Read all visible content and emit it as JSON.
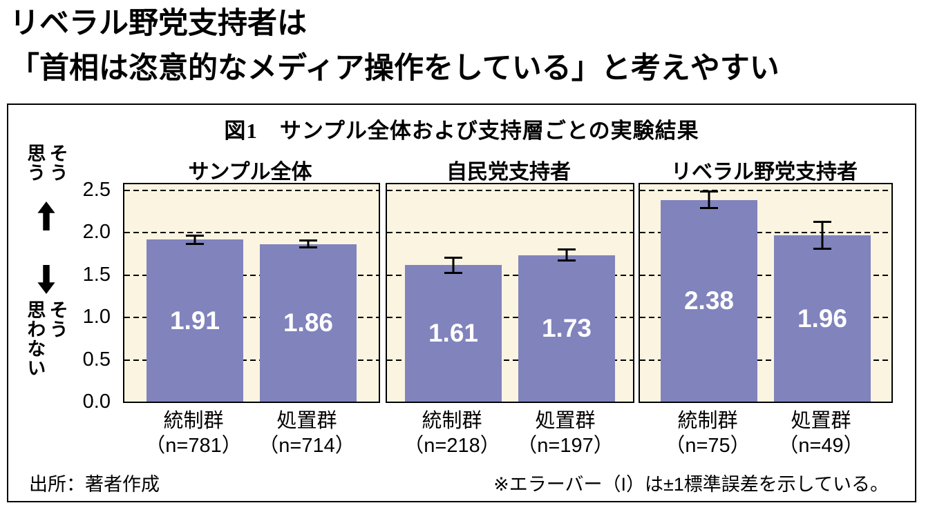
{
  "page_title": {
    "line1": "リベラル野党支持者は",
    "line2": "「首相は恣意的なメディア操作をしている」と考えやすい"
  },
  "figure": {
    "title": "図1　サンプル全体および支持層ごとの実験結果",
    "source": "出所：著者作成",
    "note": "※エラーバー（I）は±1標準誤差を示している。"
  },
  "y_axis": {
    "top_label": "そう\n思う",
    "bottom_label": "そう\n思わない",
    "up_arrow_icon": "up-arrow",
    "down_arrow_icon": "down-arrow",
    "ticks": [
      "2.5",
      "2.0",
      "1.5",
      "1.0",
      "0.5",
      "0.0"
    ],
    "tick_values": [
      2.5,
      2.0,
      1.5,
      1.0,
      0.5,
      0.0
    ],
    "min": 0,
    "max": 2.5
  },
  "colors": {
    "bar": "#8183bd",
    "panel_background": "#fbf4e1",
    "error_bar": "#000000",
    "value_label": "#ffffff"
  },
  "chart_data": {
    "type": "bar",
    "title": "図1　サンプル全体および支持層ごとの実験結果",
    "ylim": [
      0,
      2.5
    ],
    "yticks": [
      0.0,
      0.5,
      1.0,
      1.5,
      2.0,
      2.5
    ],
    "grid": "dashed-horizontal",
    "error_bars": "±1 standard error",
    "panels": [
      {
        "title": "サンプル全体",
        "categories": [
          "統制群",
          "処置群"
        ],
        "bars": [
          {
            "label": "統制群",
            "n_label": "（n=781）",
            "value": 1.91,
            "value_label": "1.91",
            "se": 0.06
          },
          {
            "label": "処置群",
            "n_label": "（n=714）",
            "value": 1.86,
            "value_label": "1.86",
            "se": 0.05
          }
        ]
      },
      {
        "title": "自民党支持者",
        "categories": [
          "統制群",
          "処置群"
        ],
        "bars": [
          {
            "label": "統制群",
            "n_label": "（n=218）",
            "value": 1.61,
            "value_label": "1.61",
            "se": 0.1
          },
          {
            "label": "処置群",
            "n_label": "（n=197）",
            "value": 1.73,
            "value_label": "1.73",
            "se": 0.08
          }
        ]
      },
      {
        "title": "リベラル野党支持者",
        "categories": [
          "統制群",
          "処置群"
        ],
        "bars": [
          {
            "label": "統制群",
            "n_label": "（n=75）",
            "value": 2.38,
            "value_label": "2.38",
            "se": 0.11
          },
          {
            "label": "処置群",
            "n_label": "（n=49）",
            "value": 1.96,
            "value_label": "1.96",
            "se": 0.17
          }
        ]
      }
    ]
  }
}
